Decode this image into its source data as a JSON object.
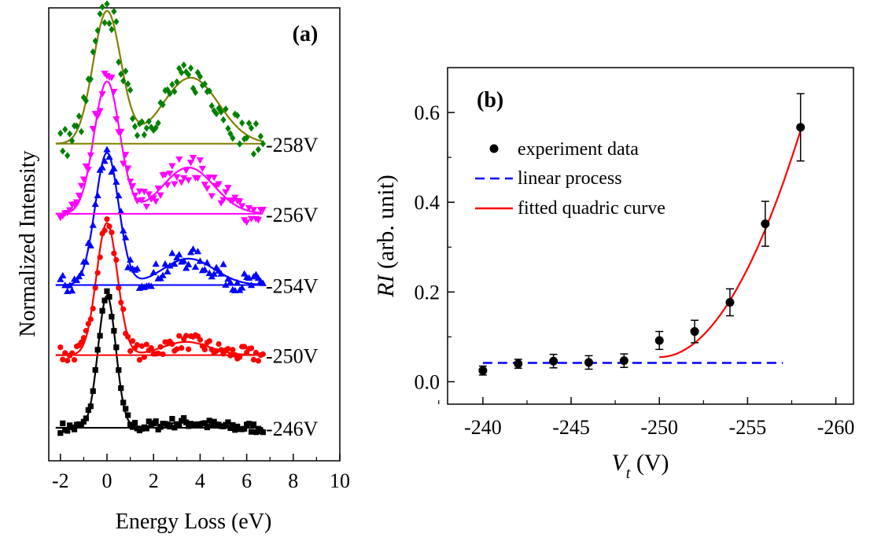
{
  "chart_data": [
    {
      "panel": "(a)",
      "type": "line",
      "xlabel": "Energy Loss (eV)",
      "ylabel": "Normalized Intensity",
      "xlim": [
        -2.5,
        10
      ],
      "xticks": [
        "-2",
        "0",
        "2",
        "4",
        "6",
        "8",
        "10"
      ],
      "series": [
        {
          "name": "-246V",
          "color": "#000000",
          "marker": "square",
          "offset": 0.0,
          "peak1": {
            "center": 0.0,
            "height": 1.0,
            "sigma": 0.38
          },
          "peak2": {
            "center": 3.3,
            "height": 0.04,
            "sigma": 1.0
          }
        },
        {
          "name": "-250V",
          "color": "#ff0000",
          "marker": "circle",
          "offset": 0.55,
          "peak1": {
            "center": 0.0,
            "height": 1.0,
            "sigma": 0.45
          },
          "peak2": {
            "center": 3.4,
            "height": 0.1,
            "sigma": 1.0
          }
        },
        {
          "name": "-254V",
          "color": "#0000ff",
          "marker": "triangle",
          "offset": 1.08,
          "peak1": {
            "center": 0.0,
            "height": 1.0,
            "sigma": 0.5
          },
          "peak2": {
            "center": 3.5,
            "height": 0.2,
            "sigma": 1.1
          }
        },
        {
          "name": "-256V",
          "color": "#ff00ff",
          "marker": "triangle-down",
          "offset": 1.62,
          "peak1": {
            "center": 0.0,
            "height": 1.0,
            "sigma": 0.55
          },
          "peak2": {
            "center": 3.5,
            "height": 0.35,
            "sigma": 1.1
          }
        },
        {
          "name": "-258V",
          "color": "#008000",
          "fit_color": "#808000",
          "marker": "diamond",
          "offset": 2.15,
          "peak1": {
            "center": 0.0,
            "height": 1.0,
            "sigma": 0.6
          },
          "peak2": {
            "center": 3.6,
            "height": 0.5,
            "sigma": 1.2
          }
        }
      ]
    },
    {
      "panel": "(b)",
      "type": "scatter",
      "xlabel_main": "V",
      "xlabel_sub": "t",
      "xlabel_unit": " (V)",
      "ylabel_main": "RI",
      "ylabel_unit": " (arb. unit)",
      "xlim": [
        -238,
        -261
      ],
      "ylim": [
        -0.05,
        0.7
      ],
      "xticks": [
        "-240",
        "-245",
        "-250",
        "-255",
        "-260"
      ],
      "yticks": [
        "0.0",
        "0.2",
        "0.4",
        "0.6"
      ],
      "legend": [
        "experiment data",
        "linear process",
        "fitted quadric curve"
      ],
      "legend_placement": "top-left",
      "experiment_data": {
        "x": [
          -240,
          -242,
          -244,
          -246,
          -248,
          -250,
          -252,
          -254,
          -256,
          -258
        ],
        "y": [
          0.025,
          0.04,
          0.046,
          0.043,
          0.047,
          0.092,
          0.112,
          0.177,
          0.352,
          0.567
        ],
        "err": [
          0.01,
          0.01,
          0.015,
          0.015,
          0.015,
          0.02,
          0.025,
          0.03,
          0.05,
          0.075
        ]
      },
      "linear_process": {
        "x": [
          -240,
          -257
        ],
        "y": 0.042,
        "color": "#0000ff"
      },
      "fitted_quadric_curve": {
        "x_start": -250,
        "x_end": -258,
        "y_start": 0.055,
        "y_end": 0.56,
        "color": "#ff0000"
      }
    }
  ]
}
